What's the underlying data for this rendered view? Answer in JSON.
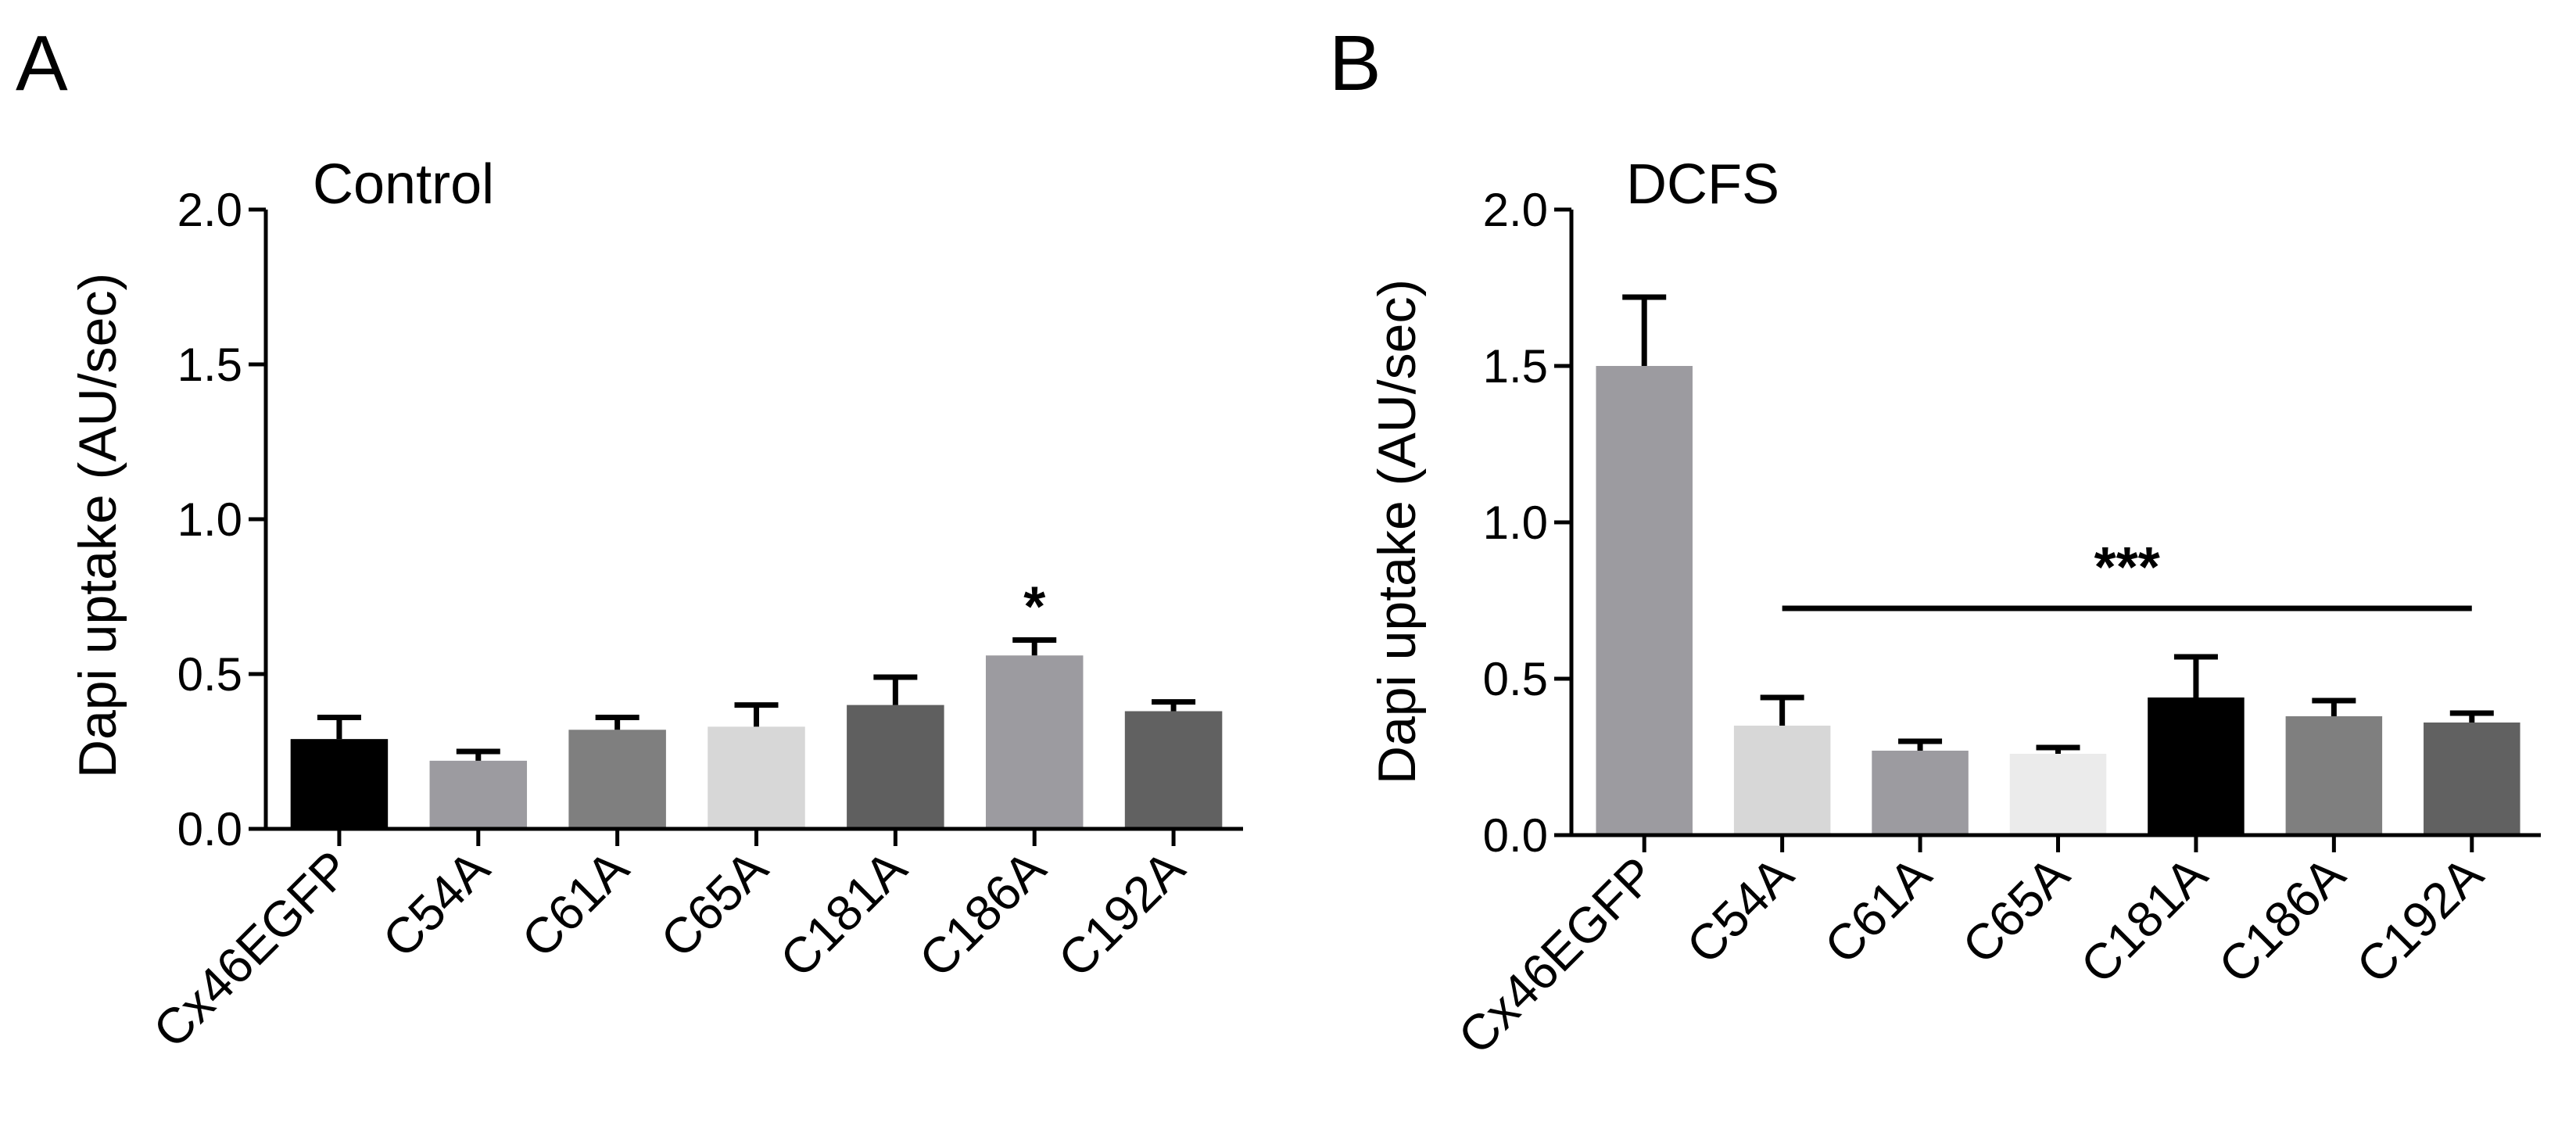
{
  "chart_data": [
    {
      "panel_label": "A",
      "type": "bar",
      "title": "Control",
      "ylabel": "Dapi uptake (AU/sec)",
      "xlabel": "",
      "ylim": [
        0,
        2.0
      ],
      "yticks": [
        "0.0",
        "0.5",
        "1.0",
        "1.5",
        "2.0"
      ],
      "categories": [
        "Cx46EGFP",
        "C54A",
        "C61A",
        "C65A",
        "C181A",
        "C186A",
        "C192A"
      ],
      "values": [
        0.29,
        0.22,
        0.32,
        0.33,
        0.4,
        0.56,
        0.38
      ],
      "errors": [
        0.07,
        0.03,
        0.04,
        0.07,
        0.09,
        0.05,
        0.03
      ],
      "colors": [
        "#000000",
        "#9c9ba0",
        "#7f7f7f",
        "#d7d7d7",
        "#5f5f5f",
        "#9c9ba0",
        "#616161"
      ],
      "annotations": [
        {
          "category": "C186A",
          "text": "*"
        }
      ]
    },
    {
      "panel_label": "B",
      "type": "bar",
      "title": "DCFS",
      "ylabel": "Dapi uptake (AU/sec)",
      "xlabel": "",
      "ylim": [
        0,
        2.0
      ],
      "yticks": [
        "0.0",
        "0.5",
        "1.0",
        "1.5",
        "2.0"
      ],
      "categories": [
        "Cx46EGFP",
        "C54A",
        "C61A",
        "C65A",
        "C181A",
        "C186A",
        "C192A"
      ],
      "values": [
        1.5,
        0.35,
        0.27,
        0.26,
        0.44,
        0.38,
        0.36
      ],
      "errors": [
        0.22,
        0.09,
        0.03,
        0.02,
        0.13,
        0.05,
        0.03
      ],
      "colors": [
        "#9c9ba0",
        "#d7d7d7",
        "#9c9ba0",
        "#ebebeb",
        "#000000",
        "#7f7f7f",
        "#616161"
      ],
      "annotations": [
        {
          "from": "C54A",
          "to": "C192A",
          "text": "***"
        }
      ]
    }
  ]
}
